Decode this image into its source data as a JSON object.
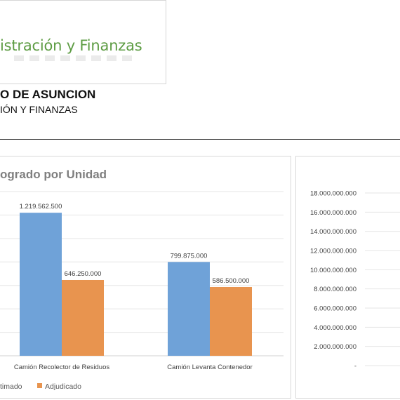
{
  "header": {
    "logo_text": "istración y Finanzas",
    "org_name": "O DE ASUNCION",
    "org_department": "IÓN Y FINANZAS"
  },
  "colors": {
    "estimado": "#6fa2d8",
    "adjudicado": "#e8944f",
    "logo_green": "#5d9c43"
  },
  "chart_data": [
    {
      "type": "bar",
      "title": "ograd​o por Unidad",
      "categories": [
        "Camión Recolector de Residuos",
        "Camión Levanta Contenedor"
      ],
      "series": [
        {
          "name": "timado",
          "values": [
            1219562500,
            799875000
          ],
          "labels": [
            "1.219.562.500",
            "799.875.000"
          ]
        },
        {
          "name": "Adjudicado",
          "values": [
            646250000,
            586500000
          ],
          "labels": [
            "646.250.000",
            "586.500.000"
          ]
        }
      ],
      "ylim": [
        0,
        1400000000
      ],
      "grid": true,
      "legend": "bottom-left"
    },
    {
      "type": "bar",
      "ytick_labels": [
        "18.000.000.000",
        "16.000.000.000",
        "14.000.000.000",
        "12.000.000.000",
        "10.000.000.000",
        "8.000.000.000",
        "6.000.000.000",
        "4.000.000.000",
        "2.000.000.000",
        "-"
      ],
      "ytick_values": [
        18000000000,
        16000000000,
        14000000000,
        12000000000,
        10000000000,
        8000000000,
        6000000000,
        4000000000,
        2000000000,
        0
      ],
      "ylim": [
        0,
        18000000000
      ],
      "grid": true
    }
  ]
}
